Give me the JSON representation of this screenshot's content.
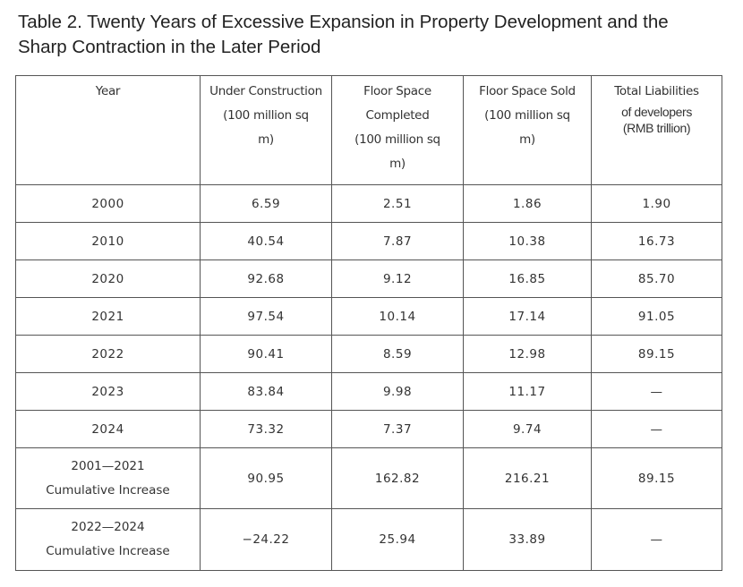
{
  "title": {
    "line1": "Table 2. Twenty Years of Excessive Expansion in Property Development and the",
    "line2": "Sharp Contraction in the Later Period"
  },
  "table": {
    "headers": [
      {
        "lines": [
          "Year"
        ]
      },
      {
        "lines": [
          "Under Construction",
          "(100 million sq",
          "m)"
        ]
      },
      {
        "lines": [
          "Floor Space",
          "Completed",
          "(100 million sq",
          "m)"
        ]
      },
      {
        "lines": [
          "Floor Space Sold",
          "(100 million sq",
          "m)"
        ]
      },
      {
        "lines": [
          "Total Liabilities"
        ],
        "alt_lines": [
          "of developers",
          "(RMB trillion)"
        ]
      }
    ],
    "rows": [
      {
        "cells": [
          "2000",
          "6.59",
          "2.51",
          "1.86",
          "1.90"
        ]
      },
      {
        "cells": [
          "2010",
          "40.54",
          "7.87",
          "10.38",
          "16.73"
        ]
      },
      {
        "cells": [
          "2020",
          "92.68",
          "9.12",
          "16.85",
          "85.70"
        ]
      },
      {
        "cells": [
          "2021",
          "97.54",
          "10.14",
          "17.14",
          "91.05"
        ]
      },
      {
        "cells": [
          "2022",
          "90.41",
          "8.59",
          "12.98",
          "89.15"
        ]
      },
      {
        "cells": [
          "2023",
          "83.84",
          "9.98",
          "11.17",
          "—"
        ]
      },
      {
        "cells": [
          "2024",
          "73.32",
          "7.37",
          "9.74",
          "—"
        ]
      },
      {
        "cells": [
          "2001—2021 Cumulative Increase",
          "90.95",
          "162.82",
          "216.21",
          "89.15"
        ],
        "tall": true
      },
      {
        "cells": [
          "2022—2024 Cumulative Increase",
          "−24.22",
          "25.94",
          "33.89",
          "—"
        ],
        "tall": true
      }
    ]
  }
}
